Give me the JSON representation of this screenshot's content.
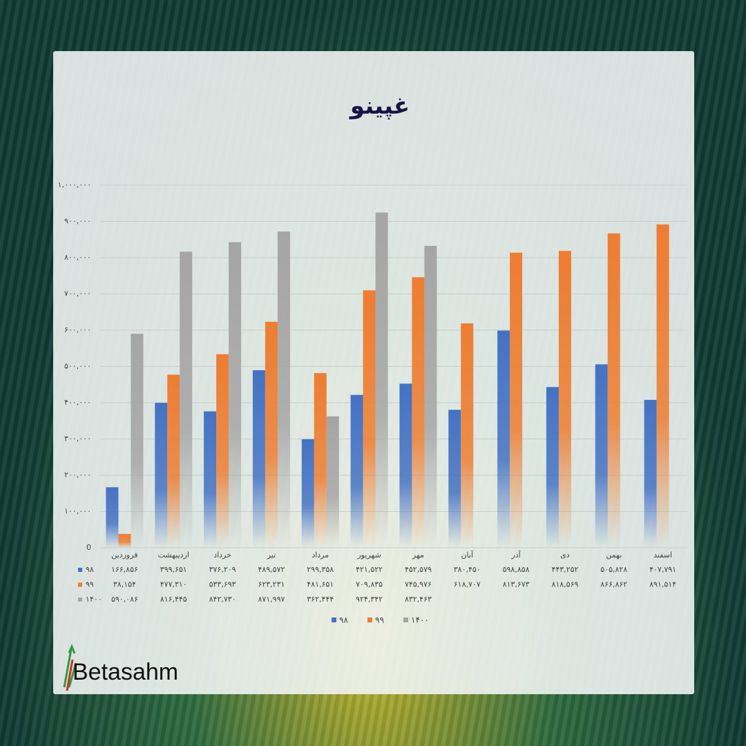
{
  "brand": "Betasahm",
  "chart_data": {
    "type": "bar",
    "title": "غپینو",
    "categories": [
      "فروردین",
      "اردیبهشت",
      "خرداد",
      "تیر",
      "مرداد",
      "شهریور",
      "مهر",
      "آبان",
      "آذر",
      "دی",
      "بهمن",
      "اسفند"
    ],
    "series": [
      {
        "name": "۹۸",
        "color": "#4472c4",
        "values": [
          166856,
          399651,
          376209,
          489572,
          299358,
          421522,
          452579,
          380450,
          598858,
          443252,
          505828,
          407791
        ],
        "value_labels": [
          "۱۶۶,۸۵۶",
          "۳۹۹,۶۵۱",
          "۳۷۶,۲۰۹",
          "۴۸۹,۵۷۲",
          "۲۹۹,۳۵۸",
          "۴۲۱,۵۲۲",
          "۴۵۲,۵۷۹",
          "۳۸۰,۴۵۰",
          "۵۹۸,۸۵۸",
          "۴۴۳,۲۵۲",
          "۵۰۵,۸۲۸",
          "۴۰۷,۷۹۱"
        ]
      },
      {
        "name": "۹۹",
        "color": "#ed7d31",
        "values": [
          38154,
          477310,
          533693,
          623231,
          481651,
          709835,
          745976,
          618707,
          813673,
          818569,
          866862,
          891514
        ],
        "value_labels": [
          "۳۸,۱۵۴",
          "۴۷۷,۳۱۰",
          "۵۳۳,۶۹۳",
          "۶۲۳,۲۳۱",
          "۴۸۱,۶۵۱",
          "۷۰۹,۸۳۵",
          "۷۴۵,۹۷۶",
          "۶۱۸,۷۰۷",
          "۸۱۳,۶۷۳",
          "۸۱۸,۵۶۹",
          "۸۶۶,۸۶۲",
          "۸۹۱,۵۱۴"
        ]
      },
      {
        "name": "۱۴۰۰",
        "color": "#a5a5a5",
        "values": [
          590086,
          816445,
          842730,
          871997,
          362444,
          924342,
          832463,
          null,
          null,
          null,
          null,
          null
        ],
        "value_labels": [
          "۵۹۰,۰۸۶",
          "۸۱۶,۴۴۵",
          "۸۴۲,۷۳۰",
          "۸۷۱,۹۹۷",
          "۳۶۲,۴۴۴",
          "۹۲۴,۳۴۲",
          "۸۳۲,۴۶۳",
          null,
          null,
          null,
          null,
          null
        ]
      }
    ],
    "ylim": [
      0,
      1000000
    ],
    "yticks": [
      0,
      {
        "value": 100000,
        "label": "۱۰۰,۰۰۰"
      },
      {
        "value": 200000,
        "label": "۲۰۰,۰۰۰"
      },
      {
        "value": 300000,
        "label": "۳۰۰,۰۰۰"
      },
      {
        "value": 400000,
        "label": "۴۰۰,۰۰۰"
      },
      {
        "value": 500000,
        "label": "۵۰۰,۰۰۰"
      },
      {
        "value": 600000,
        "label": "۶۰۰,۰۰۰"
      },
      {
        "value": 700000,
        "label": "۷۰۰,۰۰۰"
      },
      {
        "value": 800000,
        "label": "۸۰۰,۰۰۰"
      },
      {
        "value": 900000,
        "label": "۹۰۰,۰۰۰"
      },
      {
        "value": 1000000,
        "label": "۱,۰۰۰,۰۰۰"
      }
    ],
    "grid": true,
    "legend": "bottom"
  }
}
